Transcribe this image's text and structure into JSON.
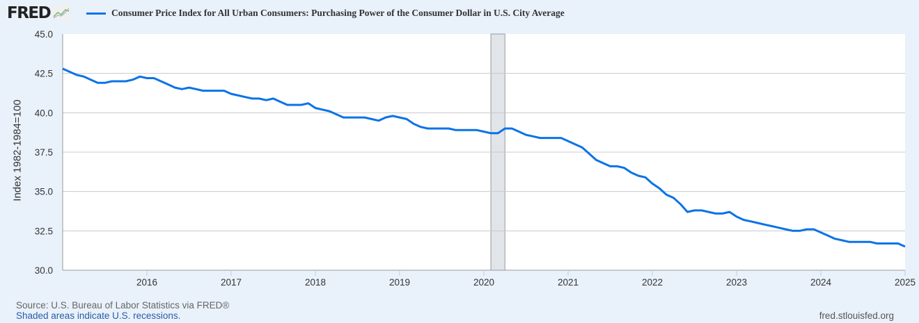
{
  "header": {
    "logo_text": "FRED",
    "logo_icon": "line-chart-icon",
    "series_title": "Consumer Price Index for All Urban Consumers: Purchasing Power of the Consumer Dollar in U.S. City Average"
  },
  "footer": {
    "source": "Source: U.S. Bureau of Labor Statistics via FRED®",
    "recession_note": "Shaded areas indicate U.S. recessions.",
    "site": "fred.stlouisfed.org"
  },
  "colors": {
    "line": "#0a73e6",
    "recession": "#e1e5ea",
    "grid": "#c8c8c8",
    "background": "#e9f1fa"
  },
  "chart_data": {
    "type": "line",
    "title": "Consumer Price Index for All Urban Consumers: Purchasing Power of the Consumer Dollar in U.S. City Average",
    "ylabel": "Index 1982-1984=100",
    "xlabel": "",
    "ylim": [
      30.0,
      45.0
    ],
    "yticks": [
      "30.0",
      "32.5",
      "35.0",
      "37.5",
      "40.0",
      "42.5",
      "45.0"
    ],
    "xticks": [
      "2016",
      "2017",
      "2018",
      "2019",
      "2020",
      "2021",
      "2022",
      "2023",
      "2024",
      "2025"
    ],
    "xlim": [
      "2015-01",
      "2025-01"
    ],
    "grid": true,
    "legend": "top",
    "recessions": [
      {
        "start": "2020-02",
        "end": "2020-04"
      }
    ],
    "series": [
      {
        "name": "Consumer Price Index for All Urban Consumers: Purchasing Power of the Consumer Dollar in U.S. City Average",
        "x": [
          "2015-01",
          "2015-02",
          "2015-03",
          "2015-04",
          "2015-05",
          "2015-06",
          "2015-07",
          "2015-08",
          "2015-09",
          "2015-10",
          "2015-11",
          "2015-12",
          "2016-01",
          "2016-02",
          "2016-03",
          "2016-04",
          "2016-05",
          "2016-06",
          "2016-07",
          "2016-08",
          "2016-09",
          "2016-10",
          "2016-11",
          "2016-12",
          "2017-01",
          "2017-02",
          "2017-03",
          "2017-04",
          "2017-05",
          "2017-06",
          "2017-07",
          "2017-08",
          "2017-09",
          "2017-10",
          "2017-11",
          "2017-12",
          "2018-01",
          "2018-02",
          "2018-03",
          "2018-04",
          "2018-05",
          "2018-06",
          "2018-07",
          "2018-08",
          "2018-09",
          "2018-10",
          "2018-11",
          "2018-12",
          "2019-01",
          "2019-02",
          "2019-03",
          "2019-04",
          "2019-05",
          "2019-06",
          "2019-07",
          "2019-08",
          "2019-09",
          "2019-10",
          "2019-11",
          "2019-12",
          "2020-01",
          "2020-02",
          "2020-03",
          "2020-04",
          "2020-05",
          "2020-06",
          "2020-07",
          "2020-08",
          "2020-09",
          "2020-10",
          "2020-11",
          "2020-12",
          "2021-01",
          "2021-02",
          "2021-03",
          "2021-04",
          "2021-05",
          "2021-06",
          "2021-07",
          "2021-08",
          "2021-09",
          "2021-10",
          "2021-11",
          "2021-12",
          "2022-01",
          "2022-02",
          "2022-03",
          "2022-04",
          "2022-05",
          "2022-06",
          "2022-07",
          "2022-08",
          "2022-09",
          "2022-10",
          "2022-11",
          "2022-12",
          "2023-01",
          "2023-02",
          "2023-03",
          "2023-04",
          "2023-05",
          "2023-06",
          "2023-07",
          "2023-08",
          "2023-09",
          "2023-10",
          "2023-11",
          "2023-12",
          "2024-01",
          "2024-02",
          "2024-03",
          "2024-04",
          "2024-05",
          "2024-06",
          "2024-07",
          "2024-08",
          "2024-09",
          "2024-10",
          "2024-11",
          "2024-12",
          "2025-01"
        ],
        "values": [
          42.8,
          42.6,
          42.4,
          42.3,
          42.1,
          41.9,
          41.9,
          42.0,
          42.0,
          42.0,
          42.1,
          42.3,
          42.2,
          42.2,
          42.0,
          41.8,
          41.6,
          41.5,
          41.6,
          41.5,
          41.4,
          41.4,
          41.4,
          41.4,
          41.2,
          41.1,
          41.0,
          40.9,
          40.9,
          40.8,
          40.9,
          40.7,
          40.5,
          40.5,
          40.5,
          40.6,
          40.3,
          40.2,
          40.1,
          39.9,
          39.7,
          39.7,
          39.7,
          39.7,
          39.6,
          39.5,
          39.7,
          39.8,
          39.7,
          39.6,
          39.3,
          39.1,
          39.0,
          39.0,
          39.0,
          39.0,
          38.9,
          38.9,
          38.9,
          38.9,
          38.8,
          38.7,
          38.7,
          39.0,
          39.0,
          38.8,
          38.6,
          38.5,
          38.4,
          38.4,
          38.4,
          38.4,
          38.2,
          38.0,
          37.8,
          37.4,
          37.0,
          36.8,
          36.6,
          36.6,
          36.5,
          36.2,
          36.0,
          35.9,
          35.5,
          35.2,
          34.8,
          34.6,
          34.2,
          33.7,
          33.8,
          33.8,
          33.7,
          33.6,
          33.6,
          33.7,
          33.4,
          33.2,
          33.1,
          33.0,
          32.9,
          32.8,
          32.7,
          32.6,
          32.5,
          32.5,
          32.6,
          32.6,
          32.4,
          32.2,
          32.0,
          31.9,
          31.8,
          31.8,
          31.8,
          31.8,
          31.7,
          31.7,
          31.7,
          31.7,
          31.5
        ]
      }
    ]
  }
}
